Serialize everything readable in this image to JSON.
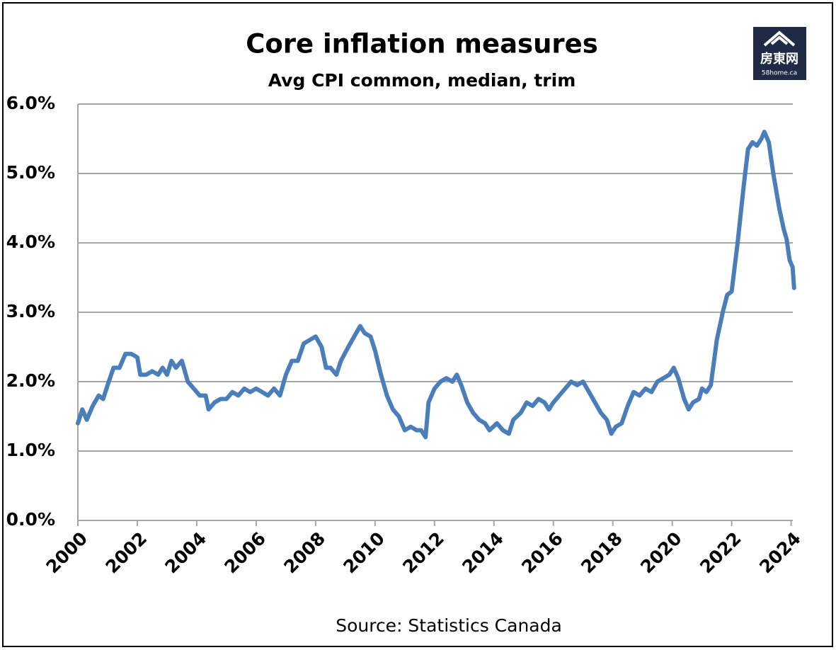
{
  "chart_data": {
    "type": "line",
    "title": "Core inflation measures",
    "subtitle": "Avg CPI common, median, trim",
    "source": "Source: Statistics Canada",
    "logo": {
      "name": "房東网",
      "site": "58home.ca"
    },
    "color": "#4a7ebb",
    "grid": true,
    "xlim": [
      2000,
      2024.2
    ],
    "xticks": [
      2000,
      2002,
      2004,
      2006,
      2008,
      2010,
      2012,
      2014,
      2016,
      2018,
      2020,
      2022,
      2024
    ],
    "ylim": [
      0,
      6
    ],
    "yticks": [
      {
        "value": 0,
        "label": "0.0%"
      },
      {
        "value": 1,
        "label": "1.0%"
      },
      {
        "value": 2,
        "label": "2.0%"
      },
      {
        "value": 3,
        "label": "3.0%"
      },
      {
        "value": 4,
        "label": "4.0%"
      },
      {
        "value": 5,
        "label": "5.0%"
      },
      {
        "value": 6,
        "label": "6.0%"
      }
    ],
    "x": [
      2000.0,
      2000.15,
      2000.3,
      2000.5,
      2000.7,
      2000.85,
      2001.0,
      2001.2,
      2001.4,
      2001.6,
      2001.8,
      2002.0,
      2002.1,
      2002.3,
      2002.5,
      2002.7,
      2002.85,
      2003.0,
      2003.15,
      2003.3,
      2003.5,
      2003.7,
      2003.9,
      2004.1,
      2004.3,
      2004.4,
      2004.6,
      2004.8,
      2005.0,
      2005.2,
      2005.4,
      2005.6,
      2005.8,
      2006.0,
      2006.2,
      2006.4,
      2006.6,
      2006.8,
      2007.0,
      2007.2,
      2007.4,
      2007.6,
      2007.8,
      2008.0,
      2008.2,
      2008.35,
      2008.5,
      2008.7,
      2008.85,
      2009.1,
      2009.3,
      2009.5,
      2009.65,
      2009.85,
      2010.0,
      2010.2,
      2010.4,
      2010.6,
      2010.8,
      2011.0,
      2011.2,
      2011.4,
      2011.55,
      2011.7,
      2011.8,
      2012.0,
      2012.2,
      2012.4,
      2012.6,
      2012.75,
      2012.9,
      2013.1,
      2013.3,
      2013.5,
      2013.7,
      2013.85,
      2014.1,
      2014.3,
      2014.5,
      2014.65,
      2014.9,
      2015.1,
      2015.3,
      2015.5,
      2015.7,
      2015.85,
      2016.0,
      2016.2,
      2016.4,
      2016.6,
      2016.8,
      2017.0,
      2017.2,
      2017.4,
      2017.6,
      2017.8,
      2017.95,
      2018.1,
      2018.3,
      2018.5,
      2018.7,
      2018.9,
      2019.1,
      2019.3,
      2019.5,
      2019.7,
      2019.9,
      2020.05,
      2020.2,
      2020.4,
      2020.55,
      2020.7,
      2020.9,
      2021.0,
      2021.15,
      2021.3,
      2021.5,
      2021.7,
      2021.85,
      2022.0,
      2022.2,
      2022.4,
      2022.55,
      2022.7,
      2022.85,
      2023.0,
      2023.1,
      2023.25,
      2023.4,
      2023.6,
      2023.75,
      2023.85,
      2023.95,
      2024.05,
      2024.1
    ],
    "values": [
      1.4,
      1.6,
      1.45,
      1.65,
      1.8,
      1.75,
      1.95,
      2.2,
      2.2,
      2.4,
      2.4,
      2.35,
      2.1,
      2.1,
      2.15,
      2.1,
      2.2,
      2.1,
      2.3,
      2.2,
      2.3,
      2.0,
      1.9,
      1.8,
      1.8,
      1.6,
      1.7,
      1.75,
      1.75,
      1.85,
      1.8,
      1.9,
      1.85,
      1.9,
      1.85,
      1.8,
      1.9,
      1.8,
      2.1,
      2.3,
      2.3,
      2.55,
      2.6,
      2.65,
      2.5,
      2.2,
      2.2,
      2.1,
      2.3,
      2.5,
      2.65,
      2.8,
      2.7,
      2.65,
      2.45,
      2.1,
      1.8,
      1.6,
      1.5,
      1.3,
      1.35,
      1.3,
      1.3,
      1.2,
      1.7,
      1.9,
      2.0,
      2.05,
      2.0,
      2.1,
      1.95,
      1.7,
      1.55,
      1.45,
      1.4,
      1.3,
      1.4,
      1.3,
      1.25,
      1.45,
      1.55,
      1.7,
      1.65,
      1.75,
      1.7,
      1.6,
      1.7,
      1.8,
      1.9,
      2.0,
      1.95,
      2.0,
      1.85,
      1.7,
      1.55,
      1.45,
      1.25,
      1.35,
      1.4,
      1.65,
      1.85,
      1.8,
      1.9,
      1.85,
      2.0,
      2.05,
      2.1,
      2.2,
      2.05,
      1.75,
      1.6,
      1.7,
      1.75,
      1.9,
      1.85,
      1.95,
      2.6,
      3.0,
      3.25,
      3.3,
      4.0,
      4.8,
      5.35,
      5.45,
      5.4,
      5.5,
      5.6,
      5.45,
      5.0,
      4.5,
      4.2,
      4.05,
      3.75,
      3.65,
      3.35
    ]
  }
}
